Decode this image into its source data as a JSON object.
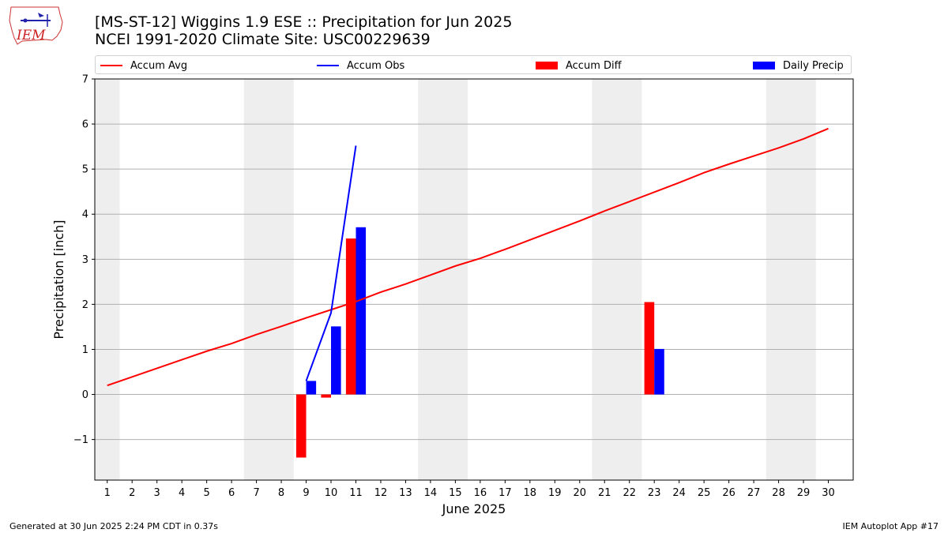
{
  "header": {
    "title_line1": "[MS-ST-12] Wiggins 1.9 ESE :: Precipitation for Jun 2025",
    "title_line2": "NCEI 1991-2020 Climate Site: USC00229639",
    "logo_text": "IEM"
  },
  "footer": {
    "left": "Generated at 30 Jun 2025 2:24 PM CDT in 0.37s",
    "right": "IEM Autoplot App #17"
  },
  "colors": {
    "accum_avg": "#ff0000",
    "accum_obs": "#0000ff",
    "accum_diff": "#ff0000",
    "daily_precip": "#0000ff",
    "weekend_shade": "#eeeeee",
    "grid": "#b0b0b0"
  },
  "legend": {
    "items": [
      {
        "label": "Accum Avg",
        "kind": "line",
        "color": "#ff0000"
      },
      {
        "label": "Accum Obs",
        "kind": "line",
        "color": "#0000ff"
      },
      {
        "label": "Accum Diff",
        "kind": "patch",
        "color": "#ff0000"
      },
      {
        "label": "Daily Precip",
        "kind": "patch",
        "color": "#0000ff"
      }
    ]
  },
  "chart_data": {
    "type": "bar",
    "title": "[MS-ST-12] Wiggins 1.9 ESE :: Precipitation for Jun 2025",
    "subtitle": "NCEI 1991-2020 Climate Site: USC00229639",
    "xlabel": "June 2025",
    "ylabel": "Precipitation [inch]",
    "xlim": [
      0.5,
      31.0
    ],
    "ylim": [
      -1.9,
      7.0
    ],
    "x_ticks": [
      1,
      2,
      3,
      4,
      5,
      6,
      7,
      8,
      9,
      10,
      11,
      12,
      13,
      14,
      15,
      16,
      17,
      18,
      19,
      20,
      21,
      22,
      23,
      24,
      25,
      26,
      27,
      28,
      29,
      30
    ],
    "y_ticks": [
      -1,
      0,
      1,
      2,
      3,
      4,
      5,
      6,
      7
    ],
    "y_tick_labels": [
      "−1",
      "0",
      "1",
      "2",
      "3",
      "4",
      "5",
      "6",
      "7"
    ],
    "grid": "y",
    "legend_position": "top",
    "weekend_shading": [
      [
        0.5,
        1.5
      ],
      [
        6.5,
        8.5
      ],
      [
        13.5,
        15.5
      ],
      [
        20.5,
        22.5
      ],
      [
        27.5,
        29.5
      ]
    ],
    "series": [
      {
        "name": "Accum Avg",
        "type": "line",
        "x": [
          1,
          2,
          3,
          4,
          5,
          6,
          7,
          8,
          9,
          10,
          11,
          12,
          13,
          14,
          15,
          16,
          17,
          18,
          19,
          20,
          21,
          22,
          23,
          24,
          25,
          26,
          27,
          28,
          29,
          30
        ],
        "values": [
          0.2,
          0.39,
          0.58,
          0.77,
          0.96,
          1.13,
          1.33,
          1.51,
          1.7,
          1.88,
          2.06,
          2.27,
          2.45,
          2.65,
          2.85,
          3.02,
          3.22,
          3.43,
          3.64,
          3.85,
          4.07,
          4.28,
          4.49,
          4.7,
          4.92,
          5.11,
          5.29,
          5.47,
          5.67,
          5.9
        ]
      },
      {
        "name": "Accum Obs",
        "type": "line",
        "x": [
          9,
          10,
          11
        ],
        "values": [
          0.3,
          1.81,
          5.52
        ]
      },
      {
        "name": "Accum Diff",
        "type": "bar",
        "x": [
          9,
          10,
          11,
          23
        ],
        "values": [
          -1.4,
          -0.07,
          3.46,
          2.05
        ]
      },
      {
        "name": "Daily Precip",
        "type": "bar",
        "x": [
          9,
          10,
          11,
          23
        ],
        "values": [
          0.3,
          1.51,
          3.71,
          1.01
        ]
      }
    ]
  }
}
